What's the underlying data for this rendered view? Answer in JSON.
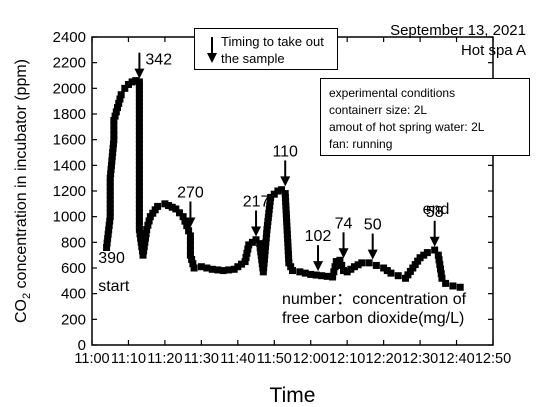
{
  "chart_data": {
    "type": "scatter",
    "xlabel": "Time",
    "ylabel_main": "CO",
    "ylabel_sub": "2",
    "ylabel_rest": " concentration in incubator (ppm)",
    "xlim_minutes": [
      660,
      770
    ],
    "ylim": [
      0,
      2400
    ],
    "x_ticks": [
      "11:00",
      "11:10",
      "11:20",
      "11:30",
      "11:40",
      "11:50",
      "12:00",
      "12:10",
      "12:20",
      "12:30",
      "12:40",
      "12:50"
    ],
    "y_ticks": [
      "0",
      "200",
      "400",
      "600",
      "800",
      "1000",
      "1200",
      "1400",
      "1600",
      "1800",
      "2000",
      "2200",
      "2400"
    ],
    "grid": false,
    "series": [
      {
        "color": "#000000",
        "points": [
          [
            "11:04",
            760
          ],
          [
            "11:05",
            1000
          ],
          [
            "11:05",
            1300
          ],
          [
            "11:06",
            1600
          ],
          [
            "11:06",
            1750
          ],
          [
            "11:07",
            1850
          ],
          [
            "11:08",
            1950
          ],
          [
            "11:09",
            2000
          ],
          [
            "11:10",
            2030
          ],
          [
            "11:11",
            2050
          ],
          [
            "11:12",
            2060
          ],
          [
            "11:13",
            2050
          ],
          [
            "11:13",
            1800
          ],
          [
            "11:13",
            1600
          ],
          [
            "11:13",
            1400
          ],
          [
            "11:13",
            1100
          ],
          [
            "11:13",
            900
          ],
          [
            "11:14",
            700
          ],
          [
            "11:15",
            900
          ],
          [
            "11:16",
            1000
          ],
          [
            "11:18",
            1080
          ],
          [
            "11:20",
            1100
          ],
          [
            "11:23",
            1060
          ],
          [
            "11:25",
            1000
          ],
          [
            "11:26",
            930
          ],
          [
            "11:27",
            850
          ],
          [
            "11:27",
            700
          ],
          [
            "11:28",
            600
          ],
          [
            "11:30",
            610
          ],
          [
            "11:33",
            590
          ],
          [
            "11:36",
            580
          ],
          [
            "11:39",
            590
          ],
          [
            "11:42",
            650
          ],
          [
            "11:43",
            780
          ],
          [
            "11:45",
            820
          ],
          [
            "11:46",
            790
          ],
          [
            "11:47",
            570
          ],
          [
            "11:48",
            900
          ],
          [
            "11:49",
            1150
          ],
          [
            "11:51",
            1200
          ],
          [
            "11:52",
            1210
          ],
          [
            "11:53",
            1180
          ],
          [
            "11:54",
            640
          ],
          [
            "11:55",
            580
          ],
          [
            "11:57",
            570
          ],
          [
            "12:00",
            550
          ],
          [
            "12:03",
            540
          ],
          [
            "12:06",
            530
          ],
          [
            "12:07",
            650
          ],
          [
            "12:08",
            660
          ],
          [
            "12:09",
            580
          ],
          [
            "12:10",
            570
          ],
          [
            "12:12",
            610
          ],
          [
            "12:14",
            640
          ],
          [
            "12:16",
            640
          ],
          [
            "12:18",
            620
          ],
          [
            "12:20",
            600
          ],
          [
            "12:22",
            560
          ],
          [
            "12:24",
            540
          ],
          [
            "12:26",
            520
          ],
          [
            "12:28",
            600
          ],
          [
            "12:30",
            680
          ],
          [
            "12:32",
            720
          ],
          [
            "12:34",
            740
          ],
          [
            "12:35",
            700
          ],
          [
            "12:36",
            520
          ],
          [
            "12:37",
            480
          ],
          [
            "12:39",
            460
          ],
          [
            "12:41",
            450
          ]
        ]
      }
    ],
    "sample_arrows": [
      {
        "time": "11:13",
        "y": 2060,
        "label": "342",
        "side": "right"
      },
      {
        "time": "11:27",
        "y": 900,
        "label": "270",
        "side": "top"
      },
      {
        "time": "11:45",
        "y": 830,
        "label": "217",
        "side": "top"
      },
      {
        "time": "11:53",
        "y": 1220,
        "label": "110",
        "side": "top"
      },
      {
        "time": "12:02",
        "y": 560,
        "label": "102",
        "side": "top"
      },
      {
        "time": "12:09",
        "y": 660,
        "label": "74",
        "side": "top"
      },
      {
        "time": "12:17",
        "y": 650,
        "label": "50",
        "side": "top"
      },
      {
        "time": "12:34",
        "y": 750,
        "label": "58",
        "side": "top"
      }
    ],
    "annotations": [
      {
        "time": "11:05",
        "y": 640,
        "text": "390"
      },
      {
        "time": "11:05",
        "y": 420,
        "text": "start"
      },
      {
        "time": "12:34",
        "y": 1020,
        "text": "end"
      }
    ]
  },
  "legend": {
    "line1": "Timing to take out",
    "line2": "the sample"
  },
  "conditions": [
    "experimental conditions",
    "containerr size: 2L",
    "amout of hot spring water: 2L",
    "fan: running"
  ],
  "date": "September 13, 2021",
  "site": "Hot spa A",
  "note_line1": "number：concentration of",
  "note_line2": "free carbon dioxide(mg/L)"
}
